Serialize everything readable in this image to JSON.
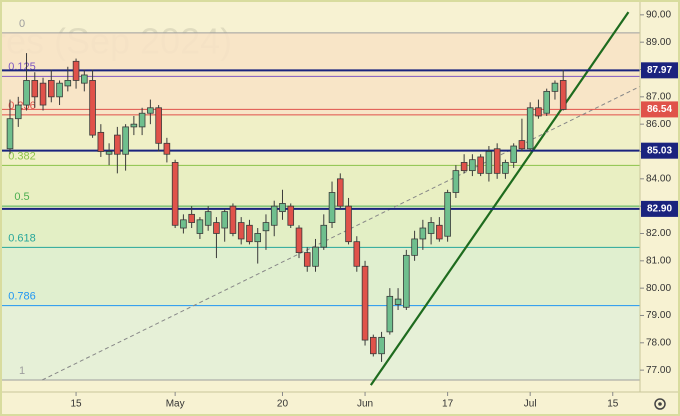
{
  "chart_data": {
    "type": "candlestick",
    "watermark": "res (Sep 2024)",
    "x": [
      0,
      1,
      2,
      3,
      4,
      5,
      6,
      7,
      8,
      9,
      10,
      11,
      12,
      13,
      14,
      15,
      16,
      17,
      18,
      19,
      20,
      21,
      22,
      23,
      24,
      25,
      26,
      27,
      28,
      29,
      30,
      31,
      32,
      33,
      34,
      35,
      36,
      37,
      38,
      39,
      40,
      41,
      42,
      43,
      44,
      45,
      46,
      47,
      48,
      49,
      50,
      51,
      52,
      53,
      54,
      55,
      56,
      57,
      58,
      59,
      60,
      61,
      62,
      63,
      64,
      65,
      66,
      67
    ],
    "open": [
      85.1,
      86.2,
      86.7,
      87.6,
      87.5,
      87.6,
      87.0,
      87.4,
      88.3,
      87.5,
      87.6,
      85.7,
      84.9,
      85.6,
      84.9,
      85.9,
      85.9,
      86.4,
      86.6,
      85.3,
      84.6,
      82.2,
      82.7,
      82.0,
      82.3,
      82.4,
      82.2,
      83.0,
      82.4,
      82.3,
      81.7,
      82.1,
      82.3,
      82.8,
      83.0,
      82.2,
      81.3,
      80.8,
      81.5,
      82.4,
      84.0,
      83.0,
      81.7,
      80.8,
      78.2,
      77.6,
      78.4,
      79.4,
      79.3,
      81.2,
      81.8,
      82.0,
      82.3,
      81.9,
      83.5,
      84.6,
      84.3,
      84.8,
      84.2,
      85.1,
      84.2,
      84.6,
      85.4,
      85.1,
      86.6,
      86.4,
      87.2,
      87.6
    ],
    "high": [
      86.9,
      87.0,
      88.6,
      87.9,
      87.7,
      88.0,
      87.6,
      88.1,
      88.4,
      88.0,
      88.0,
      86.0,
      85.3,
      85.9,
      86.0,
      86.3,
      86.6,
      86.9,
      86.7,
      85.5,
      84.7,
      82.7,
      83.0,
      82.6,
      83.0,
      82.6,
      82.9,
      83.1,
      82.6,
      82.5,
      82.2,
      82.7,
      83.2,
      83.6,
      83.1,
      82.3,
      81.5,
      81.8,
      82.7,
      83.9,
      84.2,
      83.3,
      81.9,
      81.0,
      78.3,
      78.4,
      80.0,
      80.0,
      81.4,
      82.1,
      82.5,
      82.6,
      82.6,
      83.6,
      84.5,
      84.9,
      84.9,
      84.9,
      85.2,
      85.3,
      84.7,
      85.3,
      86.2,
      86.8,
      86.9,
      87.3,
      87.6,
      88.0
    ],
    "low": [
      84.9,
      85.9,
      86.5,
      86.6,
      86.5,
      86.8,
      86.7,
      87.2,
      87.3,
      87.2,
      85.5,
      84.8,
      84.5,
      84.2,
      84.3,
      85.6,
      85.6,
      86.0,
      85.0,
      84.6,
      82.2,
      82.0,
      82.2,
      81.8,
      82.1,
      81.1,
      81.7,
      81.9,
      81.6,
      81.6,
      80.9,
      81.4,
      81.9,
      82.5,
      82.2,
      81.1,
      80.6,
      80.6,
      81.4,
      82.2,
      82.9,
      81.6,
      80.6,
      77.9,
      77.5,
      77.3,
      78.3,
      79.2,
      79.2,
      81.0,
      81.4,
      81.6,
      81.7,
      81.7,
      83.3,
      84.2,
      84.1,
      84.1,
      83.9,
      84.0,
      84.0,
      84.4,
      85.0,
      85.0,
      86.2,
      86.3,
      86.9,
      86.5
    ],
    "close": [
      86.2,
      86.7,
      87.6,
      87.0,
      86.7,
      87.0,
      87.5,
      87.6,
      87.6,
      87.8,
      85.6,
      85.0,
      85.0,
      84.9,
      85.9,
      86.0,
      86.4,
      86.6,
      85.3,
      84.9,
      82.3,
      82.5,
      82.4,
      82.5,
      82.8,
      82.0,
      82.8,
      82.0,
      81.8,
      81.7,
      82.0,
      82.4,
      83.0,
      83.1,
      82.3,
      81.3,
      80.8,
      81.5,
      82.3,
      83.5,
      83.0,
      81.7,
      80.8,
      78.1,
      77.6,
      78.2,
      79.7,
      79.6,
      81.2,
      81.8,
      82.2,
      82.4,
      81.8,
      83.5,
      84.3,
      84.3,
      84.7,
      84.2,
      85.0,
      84.2,
      84.6,
      85.2,
      85.1,
      86.6,
      86.3,
      87.2,
      87.5,
      86.54
    ],
    "up_color": "#6fbf8e",
    "down_color": "#e0524a",
    "xlim": [
      -0.97,
      76.3
    ],
    "xticks": [
      {
        "value": 8,
        "label": "15"
      },
      {
        "value": 20,
        "label": "May"
      },
      {
        "value": 33,
        "label": "20"
      },
      {
        "value": 43,
        "label": "Jun"
      },
      {
        "value": 53,
        "label": "17"
      },
      {
        "value": 63,
        "label": "Jul"
      },
      {
        "value": 73,
        "label": "15"
      }
    ],
    "ylim": [
      76.2,
      90.47
    ],
    "yticks": [
      {
        "value": 77,
        "label": "77.00"
      },
      {
        "value": 78,
        "label": "78.00"
      },
      {
        "value": 79,
        "label": "79.00"
      },
      {
        "value": 80,
        "label": "80.00"
      },
      {
        "value": 81,
        "label": "81.00"
      },
      {
        "value": 82,
        "label": "82.00"
      },
      {
        "value": 83,
        "label": "83.00"
      },
      {
        "value": 84,
        "label": "84.00"
      },
      {
        "value": 85,
        "label": "85.00"
      },
      {
        "value": 86,
        "label": "86.00"
      },
      {
        "value": 87,
        "label": "87.00"
      },
      {
        "value": 88,
        "label": "88.00"
      },
      {
        "value": 89,
        "label": "89.00"
      },
      {
        "value": 90,
        "label": "90.00"
      }
    ],
    "fib_levels": [
      {
        "ratio": 0,
        "price": 89.34,
        "color": "#9e9e9e",
        "fill": "#f8e3c6"
      },
      {
        "ratio": 0.125,
        "price": 87.75,
        "color": "#7e57c2",
        "fill": "#f8e3c6"
      },
      {
        "ratio": 0.236,
        "price": 86.34,
        "color": "#e0524a",
        "fill": "#eef0c6"
      },
      {
        "ratio": 0.382,
        "price": 84.49,
        "color": "#8bc34a",
        "fill": "#e6efc0"
      },
      {
        "ratio": 0.5,
        "price": 83.0,
        "color": "#4caf50",
        "fill": "#dfeec3"
      },
      {
        "ratio": 0.618,
        "price": 81.49,
        "color": "#26a69a",
        "fill": "#dcefcf"
      },
      {
        "ratio": 0.786,
        "price": 79.36,
        "color": "#2196f3",
        "fill": "#e3f0d8"
      },
      {
        "ratio": 1,
        "price": 76.64,
        "color": "#9e9e9e"
      }
    ],
    "price_lines": [
      {
        "value": 87.97,
        "label": "87.97",
        "color": "#1a237e"
      },
      {
        "value": 85.03,
        "label": "85.03",
        "color": "#1a237e"
      },
      {
        "value": 82.9,
        "label": "82.90",
        "color": "#1a237e"
      },
      {
        "value": 86.54,
        "label": "86.54",
        "color": "#e0524a"
      }
    ],
    "trend_lines": [
      {
        "points": [
          [
            43.7,
            76.45
          ],
          [
            74.9,
            90.1
          ]
        ],
        "color": "#1e6b1e",
        "style": "solid"
      },
      {
        "points": [
          [
            3.9,
            76.64
          ],
          [
            76.3,
            87.38
          ]
        ],
        "color": "#888888",
        "style": "dashed"
      }
    ]
  }
}
